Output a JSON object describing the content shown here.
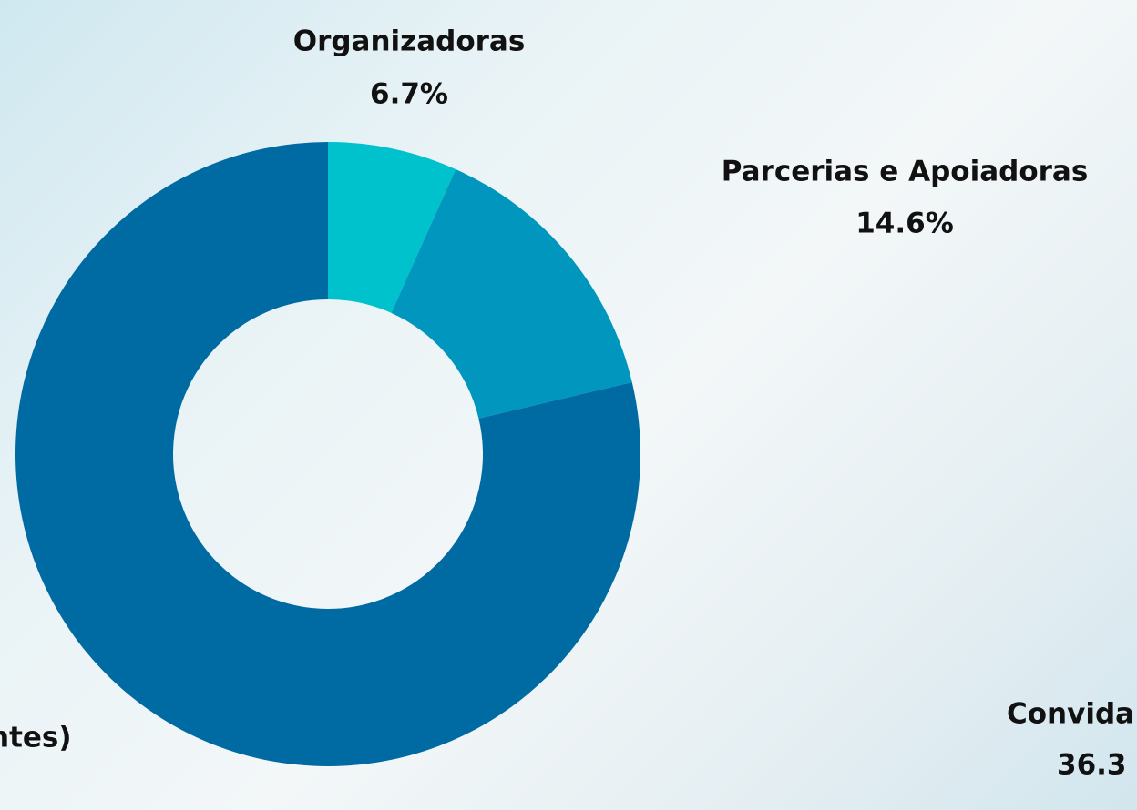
{
  "chart_data": {
    "type": "pie",
    "donut": true,
    "categories": [
      "Organizadoras",
      "Parcerias e Apoiadoras",
      "ntes)"
    ],
    "values": [
      6.7,
      14.6,
      78.7
    ],
    "value_labels": [
      "6.7%",
      "14.6%",
      null
    ],
    "colors": [
      "#00c2cc",
      "#0096bd",
      "#006aa3"
    ],
    "annotations": [
      "Convida",
      "36.3"
    ]
  }
}
